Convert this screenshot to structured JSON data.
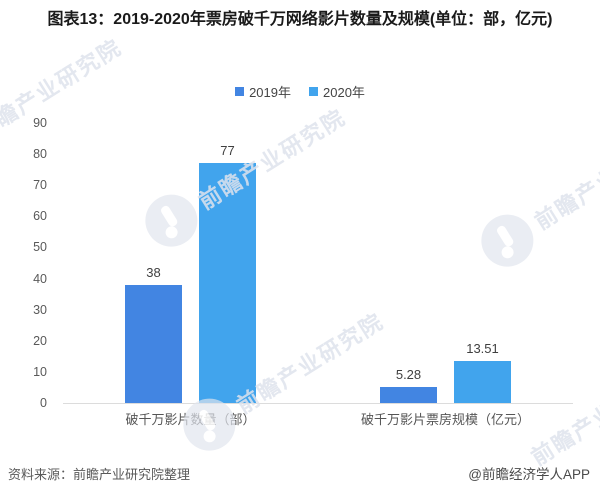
{
  "title": "图表13：2019-2020年票房破千万网络影片数量及规模(单位：部，亿元)",
  "footer": {
    "source": "资料来源：前瞻产业研究院整理",
    "credit": "@前瞻经济学人APP"
  },
  "watermark": {
    "brand_text": "前瞻产业研究院",
    "logo_name": "qianzhan-logo"
  },
  "chart_data": {
    "type": "bar",
    "categories": [
      "破千万影片数量（部）",
      "破千万影片票房规模（亿元）"
    ],
    "series": [
      {
        "name": "2019年",
        "color": "#4285e2",
        "values": [
          38,
          5.28
        ],
        "labels": [
          "38",
          "5.28"
        ]
      },
      {
        "name": "2020年",
        "color": "#41a4ed",
        "values": [
          77,
          13.51
        ],
        "labels": [
          "77",
          "13.51"
        ]
      }
    ],
    "ylim": [
      0,
      90
    ],
    "ytick_step": 10,
    "grid": false,
    "legend_position": "top-center",
    "axis_line_color": "#dcdcdc",
    "value_labels_shown": true
  }
}
